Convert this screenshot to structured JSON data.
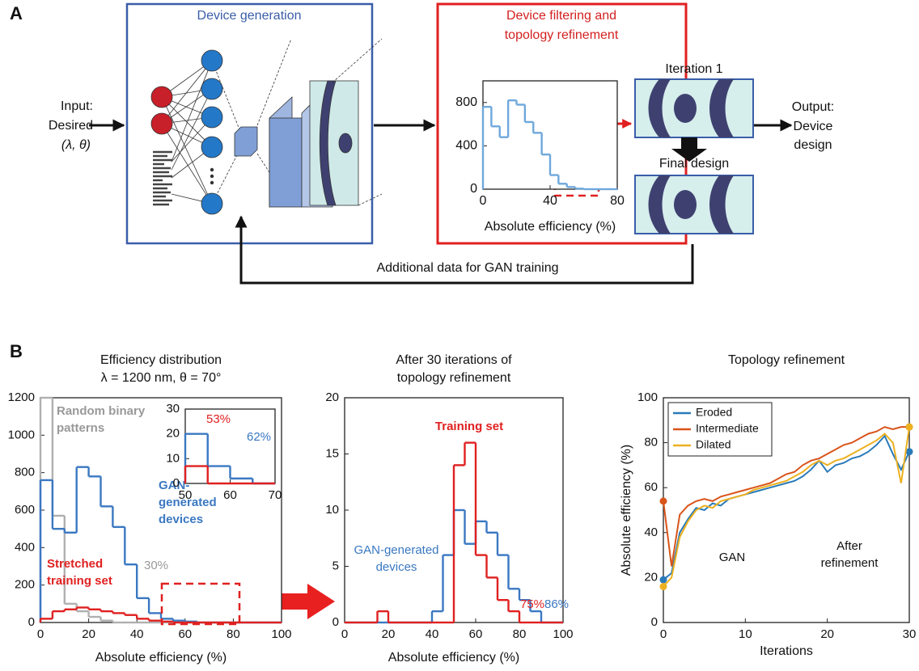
{
  "panel_a": {
    "label": "A",
    "generation_title": "Device generation",
    "filtering_title": [
      "Device filtering and",
      "topology refinement"
    ],
    "input": [
      "Input:",
      "Desired",
      "(λ, θ)"
    ],
    "iteration_label": "Iteration 1",
    "final_label": "Final design",
    "output": [
      "Output:",
      "Device",
      "design"
    ],
    "feedback": "Additional data for GAN training"
  },
  "panel_b": {
    "label": "B"
  },
  "chart_data": [
    {
      "type": "histogram",
      "xlabel": "Absolute efficiency (%)",
      "bins": [
        0,
        5,
        10,
        15,
        20,
        25,
        30,
        35,
        40,
        45,
        50,
        55,
        60,
        65,
        70,
        75,
        80
      ],
      "series": [
        {
          "color": "#6fa8dc",
          "values": [
            760,
            580,
            480,
            820,
            780,
            620,
            520,
            320,
            130,
            50,
            20,
            5,
            0,
            0,
            0,
            0
          ]
        }
      ],
      "xlim": [
        0,
        80
      ],
      "ylim": [
        0,
        1000
      ],
      "xticks": [
        0,
        40,
        80
      ],
      "yticks": [
        0,
        400,
        800
      ]
    },
    {
      "type": "histogram",
      "title": [
        "Efficiency distribution",
        "λ = 1200 nm, θ = 70°"
      ],
      "xlabel": "Absolute efficiency (%)",
      "bins": [
        0,
        5,
        10,
        15,
        20,
        25,
        30,
        35,
        40,
        45,
        50,
        55,
        60,
        65,
        70,
        75,
        80,
        85,
        90,
        95,
        100
      ],
      "series": [
        {
          "color": "#b0b0b0",
          "values": [
            1200,
            570,
            100,
            60,
            30,
            10,
            0,
            0,
            0,
            0,
            0,
            0,
            0,
            0,
            0,
            0,
            0,
            0,
            0,
            0
          ]
        },
        {
          "color": "#3a78c2",
          "values": [
            760,
            500,
            480,
            830,
            780,
            620,
            510,
            310,
            130,
            50,
            20,
            10,
            5,
            0,
            0,
            0,
            0,
            0,
            0,
            0
          ]
        },
        {
          "color": "#e02020",
          "values": [
            20,
            60,
            70,
            80,
            70,
            60,
            50,
            40,
            20,
            10,
            5,
            0,
            0,
            0,
            0,
            0,
            0,
            0,
            0,
            0
          ]
        }
      ],
      "annotations": [
        {
          "lines": [
            "Random binary",
            "patterns"
          ],
          "color": "#999999"
        },
        {
          "lines": [
            "GAN-",
            "generated",
            "devices"
          ],
          "color": "#3a78c2"
        },
        {
          "lines": [
            "Stretched",
            "training set"
          ],
          "color": "#e02020"
        },
        {
          "lines": [
            "30%"
          ],
          "color": "#999999"
        }
      ],
      "xlim": [
        0,
        100
      ],
      "ylim": [
        0,
        1200
      ],
      "xticks": [
        0,
        20,
        40,
        60,
        80,
        100
      ],
      "yticks": [
        0,
        200,
        400,
        600,
        800,
        1000,
        1200
      ]
    },
    {
      "type": "histogram",
      "bins": [
        50,
        55,
        60,
        65,
        70
      ],
      "series": [
        {
          "color": "#3a78c2",
          "values": [
            20,
            7,
            2,
            0
          ]
        },
        {
          "color": "#e02020",
          "values": [
            7,
            0,
            0,
            0
          ]
        }
      ],
      "annotations": [
        {
          "lines": [
            "53%"
          ],
          "color": "#e02020"
        },
        {
          "lines": [
            "62%"
          ],
          "color": "#3a78c2"
        }
      ],
      "xlim": [
        50,
        70
      ],
      "ylim": [
        0,
        30
      ],
      "xticks": [
        50,
        60,
        70
      ],
      "yticks": [
        0,
        10,
        20,
        30
      ]
    },
    {
      "type": "histogram",
      "title": [
        "After 30 iterations of",
        "topology refinement"
      ],
      "xlabel": "Absolute efficiency (%)",
      "bins": [
        0,
        5,
        10,
        15,
        20,
        25,
        30,
        35,
        40,
        45,
        50,
        55,
        60,
        65,
        70,
        75,
        80,
        85,
        90,
        95,
        100
      ],
      "series": [
        {
          "color": "#3a78c2",
          "values": [
            0,
            0,
            0,
            0,
            0,
            0,
            0,
            0,
            1,
            6,
            10,
            7,
            9,
            8,
            6,
            3,
            2,
            1,
            0,
            0
          ]
        },
        {
          "color": "#e02020",
          "values": [
            0,
            0,
            0,
            1,
            0,
            0,
            0,
            0,
            0,
            0,
            14,
            16,
            6,
            4,
            2,
            1,
            0,
            0,
            0,
            0
          ]
        }
      ],
      "annotations": [
        {
          "lines": [
            "Training set"
          ],
          "color": "#e02020"
        },
        {
          "lines": [
            "GAN-generated",
            "devices"
          ],
          "color": "#3a78c2"
        },
        {
          "lines": [
            "75%"
          ],
          "color": "#e02020"
        },
        {
          "lines": [
            "86%"
          ],
          "color": "#3a78c2"
        }
      ],
      "xlim": [
        0,
        100
      ],
      "ylim": [
        0,
        20
      ],
      "xticks": [
        0,
        20,
        40,
        60,
        80,
        100
      ],
      "yticks": [
        0,
        5,
        10,
        15,
        20
      ]
    },
    {
      "type": "line",
      "title": [
        "Topology refinement"
      ],
      "xlabel": "Iterations",
      "ylabel": "Absolute efficiency (%)",
      "x": [
        0,
        1,
        2,
        3,
        4,
        5,
        6,
        7,
        8,
        9,
        10,
        11,
        12,
        13,
        14,
        15,
        16,
        17,
        18,
        19,
        20,
        21,
        22,
        23,
        24,
        25,
        26,
        27,
        28,
        29,
        30
      ],
      "series": [
        {
          "name": "Eroded",
          "color": "#2a7ab9",
          "values": [
            19,
            22,
            40,
            46,
            51,
            50,
            53,
            52,
            55,
            56,
            57,
            58,
            59,
            60,
            61,
            62,
            63,
            65,
            68,
            72,
            67,
            70,
            71,
            73,
            74,
            76,
            79,
            83,
            75,
            68,
            76
          ]
        },
        {
          "name": "Intermediate",
          "color": "#d9541a",
          "values": [
            54,
            25,
            48,
            52,
            54,
            55,
            54,
            56,
            57,
            58,
            59,
            60,
            61,
            62,
            64,
            66,
            67,
            70,
            72,
            73,
            75,
            77,
            79,
            80,
            82,
            84,
            85,
            87,
            86,
            87,
            87
          ]
        },
        {
          "name": "Dilated",
          "color": "#edb120",
          "values": [
            16,
            20,
            38,
            45,
            50,
            52,
            51,
            54,
            55,
            56,
            57,
            59,
            60,
            61,
            62,
            63,
            65,
            67,
            70,
            72,
            70,
            72,
            73,
            75,
            77,
            79,
            81,
            84,
            80,
            62,
            87
          ]
        }
      ],
      "annotations": [
        {
          "lines": [
            "GAN"
          ],
          "color": "#111111"
        },
        {
          "lines": [
            "After",
            "refinement"
          ],
          "color": "#111111"
        }
      ],
      "legend": "upper left",
      "xlim": [
        0,
        30
      ],
      "ylim": [
        0,
        100
      ],
      "xticks": [
        0,
        10,
        20,
        30
      ],
      "yticks": [
        0,
        20,
        40,
        60,
        80,
        100
      ]
    }
  ]
}
